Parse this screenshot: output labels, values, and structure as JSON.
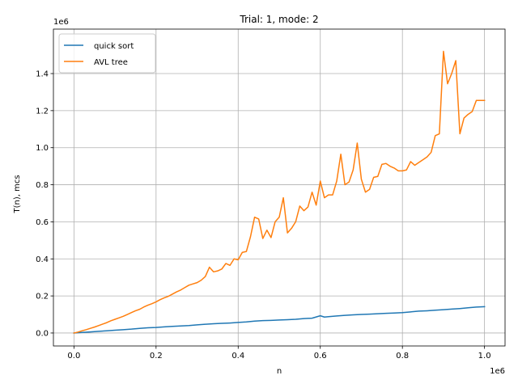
{
  "chart_data": {
    "type": "line",
    "title": "Trial: 1, mode: 2",
    "xlabel": "n",
    "ylabel": "T(n), mcs",
    "x_offset_label": "1e6",
    "y_offset_label": "1e6",
    "xlim": [
      -50000,
      1050000
    ],
    "ylim": [
      -70000,
      1640000
    ],
    "xticks": [
      0,
      200000,
      400000,
      600000,
      800000,
      1000000
    ],
    "xtick_labels": [
      "0.0",
      "0.2",
      "0.4",
      "0.6",
      "0.8",
      "1.0"
    ],
    "yticks": [
      0,
      200000,
      400000,
      600000,
      800000,
      1000000,
      1200000,
      1400000
    ],
    "ytick_labels": [
      "0.0",
      "0.2",
      "0.4",
      "0.6",
      "0.8",
      "1.0",
      "1.2",
      "1.4"
    ],
    "grid": true,
    "legend_position": "top-left",
    "series": [
      {
        "name": "quick sort",
        "color": "#1f77b4",
        "x": [
          0,
          20000,
          40000,
          60000,
          80000,
          100000,
          120000,
          140000,
          160000,
          180000,
          200000,
          220000,
          240000,
          260000,
          280000,
          300000,
          320000,
          340000,
          360000,
          380000,
          400000,
          420000,
          440000,
          460000,
          480000,
          500000,
          520000,
          540000,
          560000,
          580000,
          600000,
          610000,
          620000,
          640000,
          660000,
          680000,
          700000,
          720000,
          740000,
          760000,
          780000,
          800000,
          820000,
          840000,
          860000,
          880000,
          900000,
          920000,
          940000,
          960000,
          980000,
          1000000
        ],
        "y": [
          0,
          3000,
          6000,
          9000,
          12000,
          15000,
          18000,
          21000,
          25000,
          28000,
          30000,
          33000,
          36000,
          38000,
          40000,
          44000,
          47000,
          50000,
          52000,
          54000,
          57000,
          60000,
          64000,
          67000,
          68000,
          70000,
          72000,
          74000,
          78000,
          80000,
          93000,
          86000,
          88000,
          92000,
          95000,
          98000,
          100000,
          102000,
          104000,
          106000,
          108000,
          110000,
          114000,
          118000,
          120000,
          123000,
          126000,
          129000,
          132000,
          136000,
          140000,
          142000
        ]
      },
      {
        "name": "AVL tree",
        "color": "#ff7f0e",
        "x": [
          0,
          10000,
          20000,
          30000,
          40000,
          50000,
          60000,
          70000,
          80000,
          90000,
          100000,
          110000,
          120000,
          130000,
          140000,
          150000,
          160000,
          170000,
          180000,
          190000,
          200000,
          210000,
          220000,
          230000,
          240000,
          250000,
          260000,
          270000,
          280000,
          290000,
          300000,
          310000,
          320000,
          330000,
          340000,
          350000,
          360000,
          370000,
          380000,
          390000,
          400000,
          410000,
          420000,
          430000,
          440000,
          450000,
          460000,
          470000,
          480000,
          490000,
          500000,
          510000,
          520000,
          530000,
          540000,
          550000,
          560000,
          570000,
          580000,
          590000,
          600000,
          610000,
          620000,
          630000,
          640000,
          650000,
          660000,
          670000,
          680000,
          690000,
          700000,
          710000,
          720000,
          730000,
          740000,
          750000,
          760000,
          770000,
          780000,
          790000,
          800000,
          810000,
          820000,
          830000,
          840000,
          850000,
          860000,
          870000,
          880000,
          890000,
          900000,
          910000,
          920000,
          930000,
          940000,
          950000,
          960000,
          970000,
          980000,
          990000,
          1000000
        ],
        "y": [
          0,
          5000,
          12000,
          18000,
          25000,
          32000,
          40000,
          48000,
          56000,
          66000,
          74000,
          82000,
          90000,
          100000,
          110000,
          120000,
          128000,
          140000,
          150000,
          158000,
          168000,
          180000,
          190000,
          198000,
          210000,
          222000,
          232000,
          245000,
          258000,
          265000,
          272000,
          285000,
          305000,
          355000,
          330000,
          335000,
          345000,
          375000,
          365000,
          400000,
          395000,
          435000,
          440000,
          520000,
          625000,
          615000,
          510000,
          555000,
          515000,
          600000,
          625000,
          730000,
          540000,
          565000,
          600000,
          685000,
          660000,
          680000,
          760000,
          690000,
          820000,
          730000,
          745000,
          745000,
          820000,
          965000,
          800000,
          815000,
          880000,
          1025000,
          830000,
          760000,
          775000,
          840000,
          845000,
          910000,
          915000,
          900000,
          890000,
          875000,
          875000,
          880000,
          925000,
          905000,
          920000,
          935000,
          950000,
          975000,
          1065000,
          1075000,
          1520000,
          1345000,
          1400000,
          1470000,
          1075000,
          1160000,
          1180000,
          1195000,
          1255000,
          1255000,
          1255000
        ]
      }
    ]
  }
}
